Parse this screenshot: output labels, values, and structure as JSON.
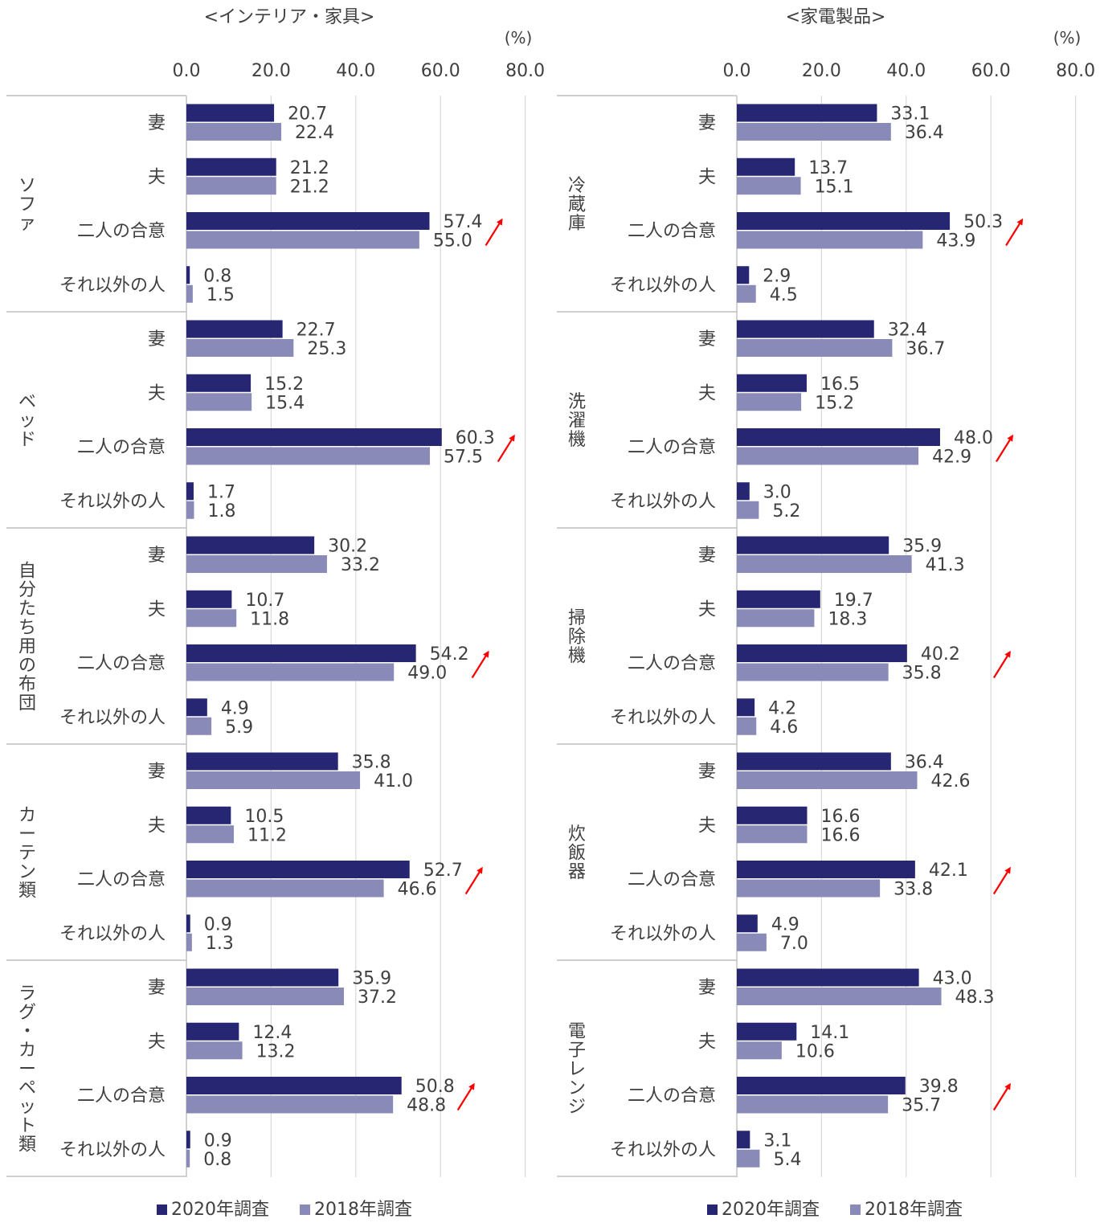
{
  "series_colors": {
    "2020": "#262673",
    "2018": "#8a8ab8"
  },
  "arrow_color": "#ff0000",
  "chart_data": [
    {
      "type": "bar",
      "orientation": "horizontal",
      "title": "<インテリア・家具>",
      "unit": "(%)",
      "xlim": [
        0,
        80
      ],
      "xticks": [
        "0.0",
        "20.0",
        "40.0",
        "60.0",
        "80.0"
      ],
      "grid": true,
      "legend_position": "bottom",
      "series_names": [
        "2020年調査",
        "2018年調査"
      ],
      "row_labels": [
        "妻",
        "夫",
        "二人の合意",
        "それ以外の人"
      ],
      "groups": [
        {
          "name": "ソファ",
          "values_2020": [
            20.7,
            21.2,
            57.4,
            0.8
          ],
          "values_2018": [
            22.4,
            21.2,
            55.0,
            1.5
          ],
          "labels_2020": [
            "20.7",
            "21.2",
            "57.4",
            "0.8"
          ],
          "labels_2018": [
            "22.4",
            "21.2",
            "55.0",
            "1.5"
          ],
          "increase_arrow_row": 2
        },
        {
          "name": "ベッド",
          "values_2020": [
            22.7,
            15.2,
            60.3,
            1.7
          ],
          "values_2018": [
            25.3,
            15.4,
            57.5,
            1.8
          ],
          "labels_2020": [
            "22.7",
            "15.2",
            "60.3",
            "1.7"
          ],
          "labels_2018": [
            "25.3",
            "15.4",
            "57.5",
            "1.8"
          ],
          "increase_arrow_row": 2
        },
        {
          "name": "自分たち用の布団",
          "values_2020": [
            30.2,
            10.7,
            54.2,
            4.9
          ],
          "values_2018": [
            33.2,
            11.8,
            49.0,
            5.9
          ],
          "labels_2020": [
            "30.2",
            "10.7",
            "54.2",
            "4.9"
          ],
          "labels_2018": [
            "33.2",
            "11.8",
            "49.0",
            "5.9"
          ],
          "increase_arrow_row": 2
        },
        {
          "name": "カーテン類",
          "values_2020": [
            35.8,
            10.5,
            52.7,
            0.9
          ],
          "values_2018": [
            41.0,
            11.2,
            46.6,
            1.3
          ],
          "labels_2020": [
            "35.8",
            "10.5",
            "52.7",
            "0.9"
          ],
          "labels_2018": [
            "41.0",
            "11.2",
            "46.6",
            "1.3"
          ],
          "increase_arrow_row": 2
        },
        {
          "name": "ラグ・カーペット類",
          "values_2020": [
            35.9,
            12.4,
            50.8,
            0.9
          ],
          "values_2018": [
            37.2,
            13.2,
            48.8,
            0.8
          ],
          "labels_2020": [
            "35.9",
            "12.4",
            "50.8",
            "0.9"
          ],
          "labels_2018": [
            "37.2",
            "13.2",
            "48.8",
            "0.8"
          ],
          "increase_arrow_row": 2
        }
      ]
    },
    {
      "type": "bar",
      "orientation": "horizontal",
      "title": "<家電製品>",
      "unit": "(%)",
      "xlim": [
        0,
        80
      ],
      "xticks": [
        "0.0",
        "20.0",
        "40.0",
        "60.0",
        "80.0"
      ],
      "grid": true,
      "legend_position": "bottom",
      "series_names": [
        "2020年調査",
        "2018年調査"
      ],
      "row_labels": [
        "妻",
        "夫",
        "二人の合意",
        "それ以外の人"
      ],
      "groups": [
        {
          "name": "冷蔵庫",
          "values_2020": [
            33.1,
            13.7,
            50.3,
            2.9
          ],
          "values_2018": [
            36.4,
            15.1,
            43.9,
            4.5
          ],
          "labels_2020": [
            "33.1",
            "13.7",
            "50.3",
            "2.9"
          ],
          "labels_2018": [
            "36.4",
            "15.1",
            "43.9",
            "4.5"
          ],
          "increase_arrow_row": 2
        },
        {
          "name": "洗濯機",
          "values_2020": [
            32.4,
            16.5,
            48.0,
            3.0
          ],
          "values_2018": [
            36.7,
            15.2,
            42.9,
            5.2
          ],
          "labels_2020": [
            "32.4",
            "16.5",
            "48.0",
            "3.0"
          ],
          "labels_2018": [
            "36.7",
            "15.2",
            "42.9",
            "5.2"
          ],
          "increase_arrow_row": 2
        },
        {
          "name": "掃除機",
          "values_2020": [
            35.9,
            19.7,
            40.2,
            4.2
          ],
          "values_2018": [
            41.3,
            18.3,
            35.8,
            4.6
          ],
          "labels_2020": [
            "35.9",
            "19.7",
            "40.2",
            "4.2"
          ],
          "labels_2018": [
            "41.3",
            "18.3",
            "35.8",
            "4.6"
          ],
          "increase_arrow_row": 2
        },
        {
          "name": "炊飯器",
          "values_2020": [
            36.4,
            16.6,
            42.1,
            4.9
          ],
          "values_2018": [
            42.6,
            16.6,
            33.8,
            7.0
          ],
          "labels_2020": [
            "36.4",
            "16.6",
            "42.1",
            "4.9"
          ],
          "labels_2018": [
            "42.6",
            "16.6",
            "33.8",
            "7.0"
          ],
          "increase_arrow_row": 2
        },
        {
          "name": "電子レンジ",
          "values_2020": [
            43.0,
            14.1,
            39.8,
            3.1
          ],
          "values_2018": [
            48.3,
            10.6,
            35.7,
            5.4
          ],
          "labels_2020": [
            "43.0",
            "14.1",
            "39.8",
            "3.1"
          ],
          "labels_2018": [
            "48.3",
            "10.6",
            "35.7",
            "5.4"
          ],
          "increase_arrow_row": 2
        }
      ]
    }
  ]
}
